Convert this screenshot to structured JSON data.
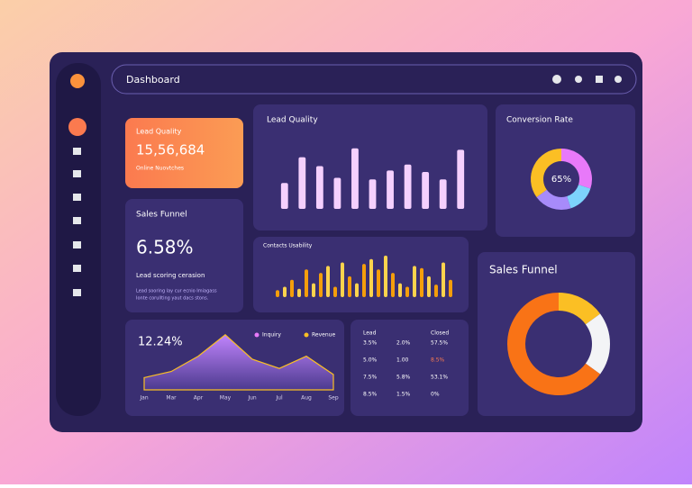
{
  "header": {
    "title": "Dashboard"
  },
  "kpi_lead": {
    "title": "Lead Quality",
    "value": "15,56,684",
    "caption": "Online Nuovtches"
  },
  "kpi_funnel": {
    "title": "Sales Funnel",
    "value": "6.58%",
    "caption": "Lead scoring cerasion",
    "note": [
      "Lead sooring lay cur ecnio Imiagass",
      "Ionte corullting yaut dacs stons."
    ]
  },
  "lead_bars": {
    "type": "bar",
    "title": "Lead Quality",
    "values": [
      35,
      70,
      58,
      42,
      82,
      40,
      52,
      60,
      50,
      40,
      80
    ],
    "ylim": [
      0,
      100
    ],
    "color": "#f5d0fe"
  },
  "conversion": {
    "type": "pie",
    "title": "Conversion Rate",
    "center_label": "65%",
    "values": [
      30,
      15,
      20,
      35
    ],
    "colors": [
      "#e879f9",
      "#7dd3fc",
      "#a78bfa",
      "#fbbf24"
    ]
  },
  "usability_bars": {
    "type": "bar",
    "title": "Contacts Usability",
    "values": [
      10,
      15,
      25,
      12,
      40,
      20,
      35,
      45,
      15,
      50,
      30,
      20,
      48,
      55,
      40,
      60,
      35,
      20,
      15,
      45,
      42,
      30,
      18,
      50,
      25
    ],
    "ylim": [
      0,
      65
    ],
    "colors": [
      "#f59e0b",
      "#fcd34d"
    ]
  },
  "funnel_donut": {
    "type": "pie",
    "title": "Sales Funnel",
    "values": [
      15,
      20,
      65
    ],
    "colors": [
      "#fbbf24",
      "#f3f4f6",
      "#f97316"
    ]
  },
  "trend": {
    "type": "area",
    "title": "12.24%",
    "categories": [
      "Jan",
      "Mar",
      "Apr",
      "May",
      "Jun",
      "Jul",
      "Aug",
      "Sep"
    ],
    "values": [
      20,
      30,
      55,
      90,
      50,
      35,
      55,
      25
    ],
    "ylim": [
      0,
      100
    ],
    "legend": [
      {
        "name": "Inquiry",
        "color": "#e879f9"
      },
      {
        "name": "Revenue",
        "color": "#fbbf24"
      }
    ]
  },
  "table": {
    "headers": [
      "Lead",
      "",
      "Closed"
    ],
    "rows": [
      [
        "3.5%",
        "2.0%",
        "57.5%"
      ],
      [
        "5.0%",
        "1.00",
        "8.5%"
      ],
      [
        "7.5%",
        "5.8%",
        "53.1%"
      ],
      [
        "8.5%",
        "1.5%",
        "0%"
      ]
    ]
  }
}
